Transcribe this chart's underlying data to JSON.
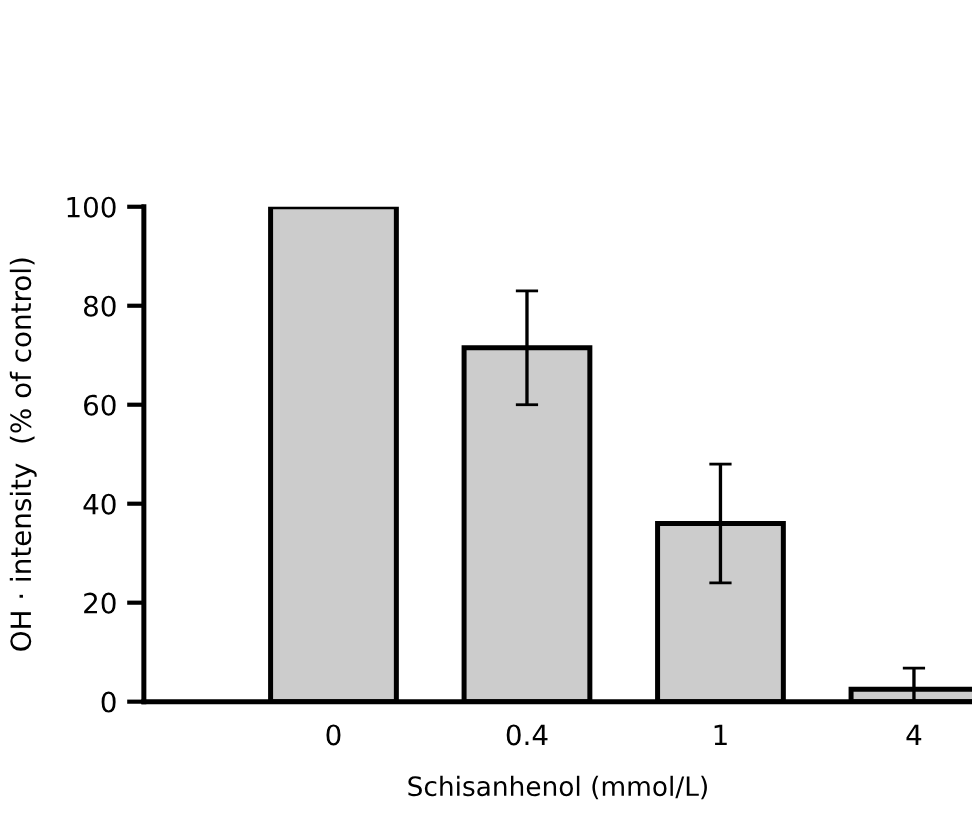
{
  "chart_data": {
    "type": "bar",
    "xlabel": "Schisanhenol (mmol/L)",
    "ylabel": "OH · intensity  (% of control)",
    "categories": [
      "0",
      "0.4",
      "1",
      "4"
    ],
    "values": [
      100,
      71.5,
      36,
      2.5
    ],
    "errors": [
      null,
      11.5,
      12,
      4.3
    ],
    "color": "#cccccc",
    "ylim": [
      0,
      100
    ],
    "yticks": [
      0,
      20,
      40,
      60,
      80,
      100
    ],
    "grid": false,
    "legend": false
  }
}
